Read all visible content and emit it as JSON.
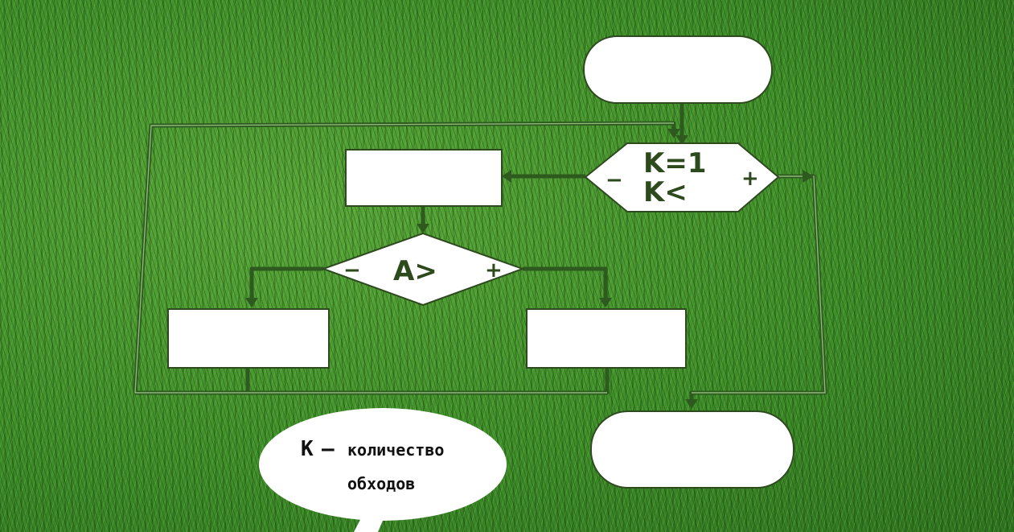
{
  "flowchart": {
    "loop_condition": {
      "line1": "K=1",
      "line2": "K<",
      "minus": "−",
      "plus": "+"
    },
    "inner_condition": {
      "label": "A>",
      "minus": "−",
      "plus": "+"
    }
  },
  "note": {
    "line1_key": "К",
    "line1_dash": "–",
    "line1_rest": "количество",
    "line2": "обходов"
  }
}
